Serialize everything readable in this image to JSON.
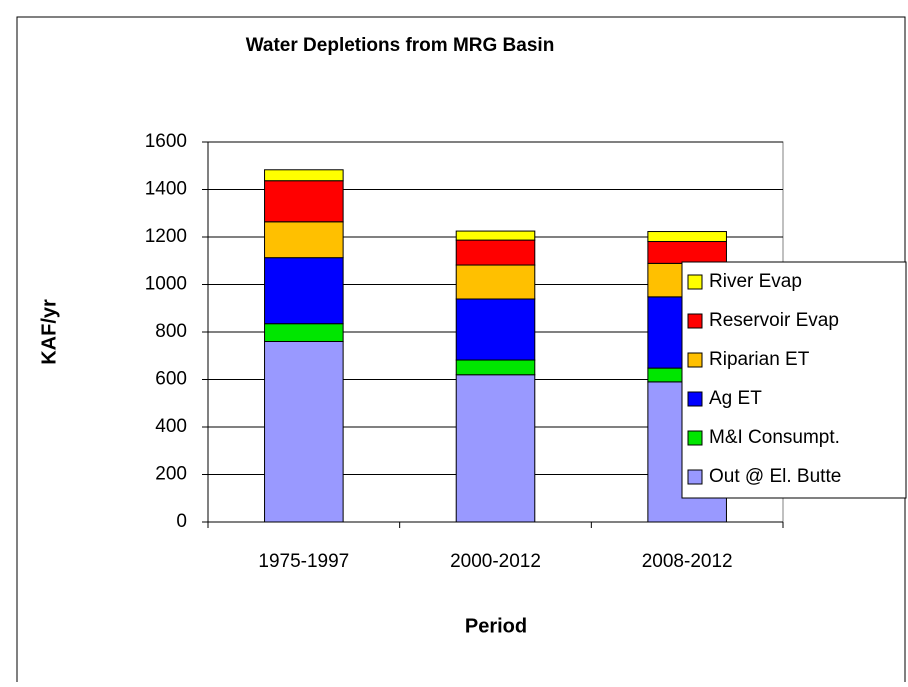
{
  "chart_data": {
    "type": "stacked_bar",
    "title": "Water Depletions from MRG Basin",
    "x_label": "Period",
    "y_label": "KAF/yr",
    "categories": [
      "1975-1997",
      "2000-2012",
      "2008-2012"
    ],
    "series": [
      {
        "name": "Out @ El. Butte",
        "color": "#9999ff",
        "values": [
          760,
          620,
          590
        ]
      },
      {
        "name": "M&I Consumpt.",
        "color": "#00e600",
        "values": [
          75,
          62,
          58
        ]
      },
      {
        "name": "Ag ET",
        "color": "#0000ff",
        "values": [
          278,
          257,
          300
        ]
      },
      {
        "name": "Riparian ET",
        "color": "#ffc000",
        "values": [
          151,
          143,
          141
        ]
      },
      {
        "name": "Reservoir Evap",
        "color": "#ff0000",
        "values": [
          173,
          105,
          92
        ]
      },
      {
        "name": "River Evap",
        "color": "#ffff00",
        "values": [
          46,
          38,
          42
        ]
      }
    ],
    "ylim": [
      0,
      1600
    ],
    "yticks": [
      0,
      200,
      400,
      600,
      800,
      1000,
      1200,
      1400,
      1600
    ],
    "grid": true,
    "legend": "right"
  }
}
